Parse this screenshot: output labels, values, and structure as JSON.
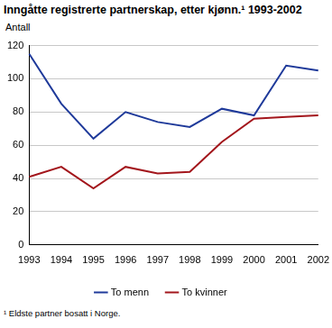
{
  "chart_data": {
    "type": "line",
    "title": "Inngåtte registrerte partnerskap, etter kjønn.¹ 1993-2002",
    "y_label": "Antall",
    "annotations": [
      "¹ Eldste partner bosatt i Norge."
    ],
    "categories": [
      "1993",
      "1994",
      "1995",
      "1996",
      "1997",
      "1998",
      "1999",
      "2000",
      "2001",
      "2002"
    ],
    "series": [
      {
        "name": "To menn",
        "color": "#1f3a9a",
        "values": [
          115,
          85,
          64,
          80,
          74,
          71,
          82,
          78,
          108,
          105
        ]
      },
      {
        "name": "To kvinner",
        "color": "#a3161c",
        "values": [
          41,
          47,
          34,
          47,
          43,
          44,
          62,
          76,
          77,
          78
        ]
      }
    ],
    "ylim": [
      0,
      120
    ],
    "yticks": [
      0,
      20,
      40,
      60,
      80,
      100,
      120
    ],
    "grid": true,
    "legend": "bottom"
  }
}
